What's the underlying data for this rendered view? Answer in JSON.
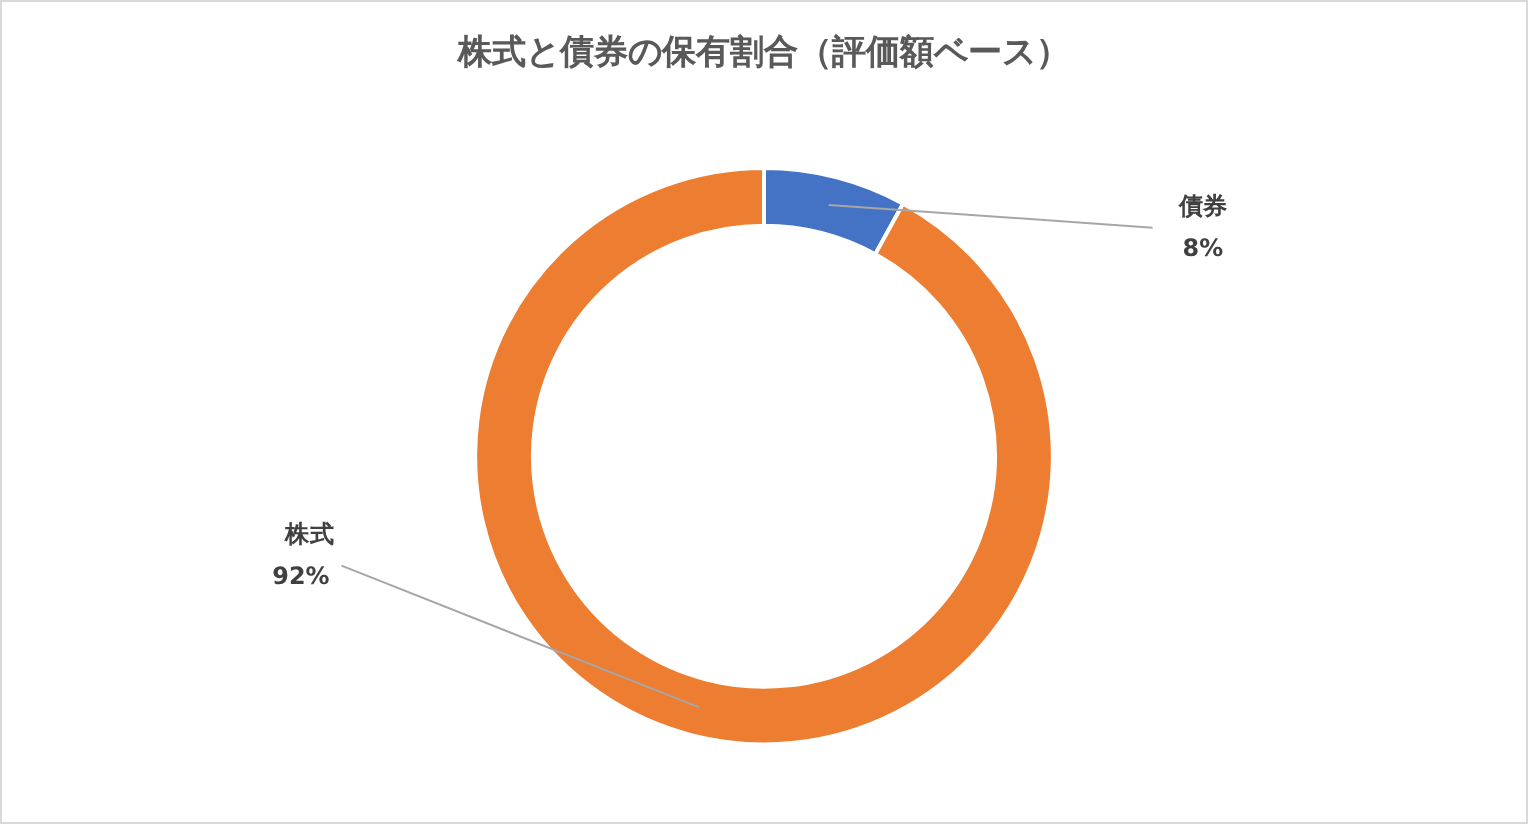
{
  "chart_data": {
    "type": "donut",
    "title": "株式と債券の保有割合（評価額ベース）",
    "categories": [
      "債券",
      "株式"
    ],
    "values": [
      8,
      92
    ],
    "colors": [
      "#4472c4",
      "#ed7d31"
    ],
    "value_labels": [
      "8%",
      "92%"
    ],
    "legend": false
  }
}
